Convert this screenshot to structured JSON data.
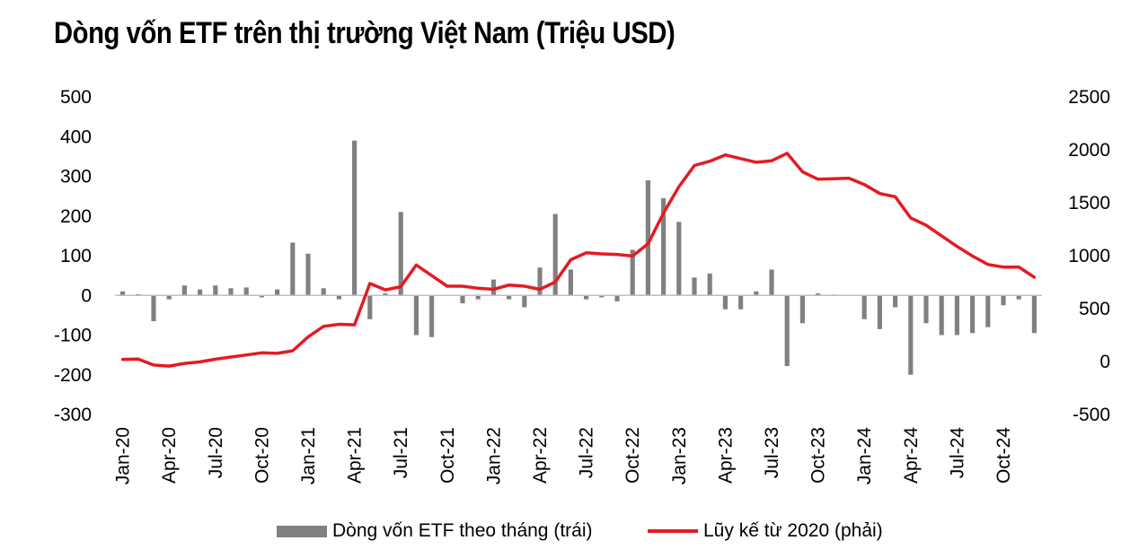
{
  "title": "Dòng vốn ETF trên thị trường Việt Nam (Triệu USD)",
  "chart_data": {
    "type": "bar",
    "title": "Dòng vốn ETF trên thị trường Việt Nam (Triệu USD)",
    "left_axis": {
      "min": -300,
      "max": 500,
      "ticks": [
        500,
        400,
        300,
        200,
        100,
        0,
        -100,
        -200,
        -300
      ]
    },
    "right_axis": {
      "min": -500,
      "max": 2500,
      "ticks": [
        2500,
        2000,
        1500,
        1000,
        500,
        0,
        -500
      ]
    },
    "x_tick_labels": [
      "Jan-20",
      "Apr-20",
      "Jul-20",
      "Oct-20",
      "Jan-21",
      "Apr-21",
      "Jul-21",
      "Oct-21",
      "Jan-22",
      "Apr-22",
      "Jul-22",
      "Oct-22",
      "Jan-23",
      "Apr-23",
      "Jul-23",
      "Oct-23",
      "Jan-24",
      "Apr-24",
      "Jul-24",
      "Oct-24"
    ],
    "months": 60,
    "legend_position": "bottom",
    "series": [
      {
        "name": "Dòng vốn ETF theo tháng (trái)",
        "type": "bar",
        "axis": "left",
        "color": "#808080",
        "values": [
          10,
          3,
          -65,
          -10,
          25,
          15,
          25,
          18,
          20,
          -5,
          15,
          133,
          105,
          18,
          -10,
          390,
          -60,
          5,
          210,
          -100,
          -105,
          0,
          -20,
          -10,
          40,
          -10,
          -30,
          70,
          205,
          65,
          -10,
          -5,
          -15,
          115,
          290,
          245,
          185,
          45,
          55,
          -35,
          -35,
          10,
          65,
          -178,
          -70,
          5,
          2,
          0,
          -60,
          -85,
          -30,
          -200,
          -70,
          -100,
          -100,
          -95,
          -80,
          -25,
          -10,
          -95
        ]
      },
      {
        "name": "Lũy kế từ 2020 (phải)",
        "type": "line",
        "axis": "right",
        "color": "#e31b23",
        "values": [
          20,
          23,
          -33,
          -43,
          -18,
          -3,
          22,
          42,
          62,
          82,
          77,
          102,
          232,
          332,
          352,
          347,
          737,
          677,
          707,
          912,
          812,
          712,
          712,
          692,
          682,
          722,
          712,
          682,
          752,
          962,
          1027,
          1017,
          1012,
          997,
          1112,
          1402,
          1652,
          1852,
          1892,
          1952,
          1917,
          1882,
          1897,
          1967,
          1792,
          1722,
          1727,
          1732,
          1672,
          1587,
          1557,
          1357,
          1287,
          1187,
          1087,
          997,
          917,
          892,
          892,
          797
        ]
      }
    ]
  },
  "legend": {
    "bar_label": "Dòng vốn ETF theo tháng (trái)",
    "line_label": "Lũy kế từ 2020 (phải)"
  }
}
